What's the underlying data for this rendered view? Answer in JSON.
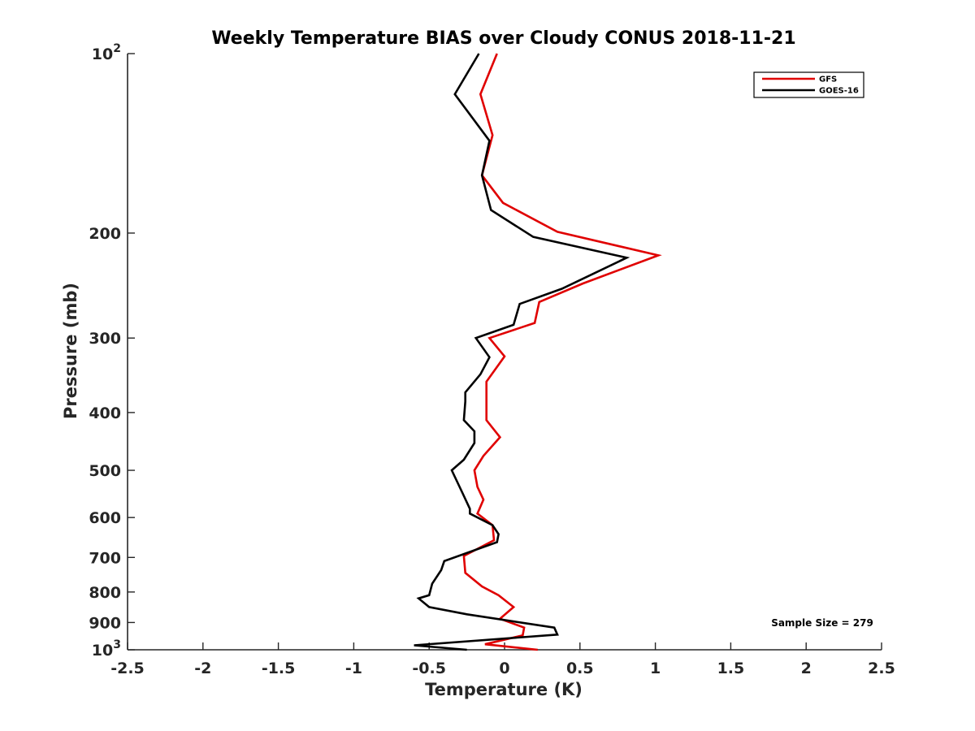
{
  "chart_data": {
    "type": "line",
    "title": "Weekly Temperature BIAS over Cloudy CONUS 2018-11-21",
    "xlabel": "Temperature (K)",
    "ylabel": "Pressure (mb)",
    "xlim": [
      -2.5,
      2.5
    ],
    "ylim": [
      100,
      1000
    ],
    "yscale": "log",
    "yreversed": false,
    "x_ticks": [
      -2.5,
      -2,
      -1.5,
      -1,
      -0.5,
      0,
      0.5,
      1,
      1.5,
      2,
      2.5
    ],
    "x_tick_labels": [
      "-2.5",
      "-2",
      "-1.5",
      "-1",
      "-0.5",
      "0",
      "0.5",
      "1",
      "1.5",
      "2",
      "2.5"
    ],
    "y_ticks": [
      100,
      200,
      300,
      400,
      500,
      600,
      700,
      800,
      900,
      1000
    ],
    "y_tick_labels": [
      {
        "base": "10",
        "exp": "2"
      },
      {
        "base": "200",
        "exp": ""
      },
      {
        "base": "300",
        "exp": ""
      },
      {
        "base": "400",
        "exp": ""
      },
      {
        "base": "500",
        "exp": ""
      },
      {
        "base": "600",
        "exp": ""
      },
      {
        "base": "700",
        "exp": ""
      },
      {
        "base": "800",
        "exp": ""
      },
      {
        "base": "900",
        "exp": ""
      },
      {
        "base": "10",
        "exp": "3"
      }
    ],
    "grid": false,
    "legend_position": "top-right",
    "series": [
      {
        "name": "GFS",
        "color": "#e00000",
        "points": [
          [
            -0.05,
            100
          ],
          [
            -0.16,
            117
          ],
          [
            -0.08,
            137
          ],
          [
            -0.15,
            160
          ],
          [
            -0.01,
            178
          ],
          [
            0.35,
            199
          ],
          [
            1.02,
            218
          ],
          [
            0.52,
            243
          ],
          [
            0.23,
            261
          ],
          [
            0.2,
            283
          ],
          [
            -0.1,
            300
          ],
          [
            0.0,
            322
          ],
          [
            -0.12,
            355
          ],
          [
            -0.12,
            387
          ],
          [
            -0.12,
            412
          ],
          [
            -0.03,
            440
          ],
          [
            -0.14,
            473
          ],
          [
            -0.2,
            500
          ],
          [
            -0.18,
            533
          ],
          [
            -0.14,
            560
          ],
          [
            -0.18,
            591
          ],
          [
            -0.08,
            618
          ],
          [
            -0.07,
            655
          ],
          [
            -0.27,
            696
          ],
          [
            -0.26,
            743
          ],
          [
            -0.15,
            783
          ],
          [
            -0.04,
            810
          ],
          [
            0.06,
            848
          ],
          [
            -0.03,
            887
          ],
          [
            0.13,
            918
          ],
          [
            0.12,
            946
          ],
          [
            -0.13,
            979
          ],
          [
            0.22,
            1000
          ]
        ]
      },
      {
        "name": "GOES-16",
        "color": "#000000",
        "points": [
          [
            -0.17,
            100
          ],
          [
            -0.33,
            117
          ],
          [
            -0.1,
            140
          ],
          [
            -0.15,
            160
          ],
          [
            -0.09,
            183
          ],
          [
            0.19,
            203
          ],
          [
            0.81,
            220
          ],
          [
            0.38,
            248
          ],
          [
            0.1,
            263
          ],
          [
            0.06,
            285
          ],
          [
            -0.19,
            300
          ],
          [
            -0.1,
            323
          ],
          [
            -0.16,
            345
          ],
          [
            -0.26,
            370
          ],
          [
            -0.26,
            383
          ],
          [
            -0.27,
            412
          ],
          [
            -0.2,
            430
          ],
          [
            -0.2,
            450
          ],
          [
            -0.27,
            480
          ],
          [
            -0.35,
            500
          ],
          [
            -0.28,
            545
          ],
          [
            -0.23,
            580
          ],
          [
            -0.23,
            591
          ],
          [
            -0.08,
            618
          ],
          [
            -0.04,
            640
          ],
          [
            -0.05,
            660
          ],
          [
            -0.4,
            710
          ],
          [
            -0.42,
            735
          ],
          [
            -0.48,
            775
          ],
          [
            -0.5,
            810
          ],
          [
            -0.57,
            820
          ],
          [
            -0.5,
            848
          ],
          [
            -0.25,
            872
          ],
          [
            0.33,
            918
          ],
          [
            0.35,
            943
          ],
          [
            -0.6,
            983
          ],
          [
            -0.25,
            1000
          ]
        ]
      }
    ],
    "annotation": "Sample Size = 279"
  }
}
